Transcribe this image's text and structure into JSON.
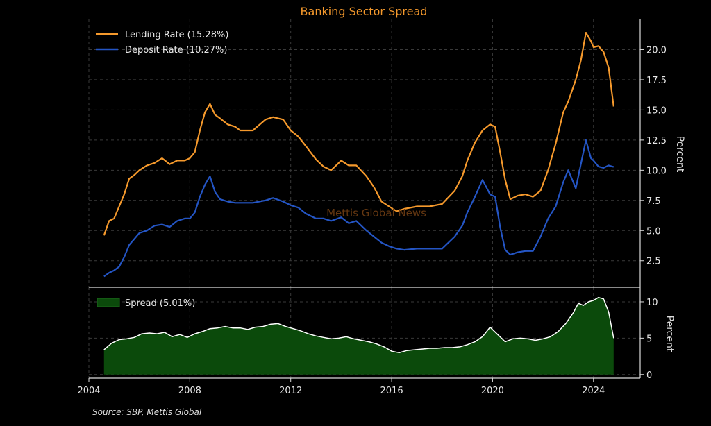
{
  "chart_data": [
    {
      "type": "line",
      "title": "Banking Sector Spread",
      "ylabel": "Percent",
      "xlim": [
        2004.0,
        2025.85
      ],
      "ylim": [
        0.3,
        22.5
      ],
      "yticks": [
        2.5,
        5.0,
        7.5,
        10.0,
        12.5,
        15.0,
        17.5,
        20.0
      ],
      "ytick_labels": [
        "2.5",
        "5.0",
        "7.5",
        "10.0",
        "12.5",
        "15.0",
        "17.5",
        "20.0"
      ],
      "grid": true,
      "legend": "top-left",
      "series": [
        {
          "name": "Lending Rate (15.28%)",
          "color": "#f5992c",
          "x": [
            2004.6,
            2004.8,
            2005.0,
            2005.2,
            2005.4,
            2005.6,
            2005.8,
            2006.0,
            2006.3,
            2006.6,
            2006.9,
            2007.2,
            2007.5,
            2007.8,
            2008.0,
            2008.2,
            2008.4,
            2008.6,
            2008.8,
            2009.0,
            2009.2,
            2009.5,
            2009.8,
            2010.0,
            2010.5,
            2011.0,
            2011.3,
            2011.7,
            2012.0,
            2012.3,
            2012.6,
            2013.0,
            2013.3,
            2013.6,
            2014.0,
            2014.3,
            2014.6,
            2015.0,
            2015.3,
            2015.6,
            2015.9,
            2016.2,
            2016.5,
            2017.0,
            2017.5,
            2018.0,
            2018.5,
            2018.8,
            2019.0,
            2019.3,
            2019.6,
            2019.9,
            2020.1,
            2020.3,
            2020.5,
            2020.7,
            2021.0,
            2021.3,
            2021.6,
            2021.9,
            2022.2,
            2022.5,
            2022.8,
            2023.0,
            2023.3,
            2023.5,
            2023.7,
            2023.9,
            2024.0,
            2024.2,
            2024.4,
            2024.6,
            2024.8
          ],
          "values": [
            4.6,
            5.8,
            6.0,
            7.0,
            8.0,
            9.3,
            9.6,
            10.0,
            10.4,
            10.6,
            11.0,
            10.5,
            10.8,
            10.8,
            11.0,
            11.5,
            13.3,
            14.8,
            15.5,
            14.6,
            14.3,
            13.8,
            13.6,
            13.3,
            13.3,
            14.2,
            14.4,
            14.2,
            13.3,
            12.8,
            12.0,
            10.9,
            10.3,
            10.0,
            10.8,
            10.4,
            10.4,
            9.5,
            8.6,
            7.4,
            7.0,
            6.6,
            6.8,
            7.0,
            7.0,
            7.2,
            8.3,
            9.5,
            10.8,
            12.3,
            13.3,
            13.8,
            13.6,
            11.5,
            9.2,
            7.6,
            7.9,
            8.0,
            7.8,
            8.3,
            10.0,
            12.2,
            14.8,
            15.7,
            17.5,
            19.1,
            21.4,
            20.7,
            20.2,
            20.3,
            19.8,
            18.5,
            15.28
          ]
        },
        {
          "name": "Deposit Rate (10.27%)",
          "color": "#2455c4",
          "x": [
            2004.6,
            2004.8,
            2005.0,
            2005.2,
            2005.4,
            2005.6,
            2005.8,
            2006.0,
            2006.3,
            2006.6,
            2006.9,
            2007.2,
            2007.5,
            2007.8,
            2008.0,
            2008.2,
            2008.4,
            2008.6,
            2008.8,
            2009.0,
            2009.2,
            2009.5,
            2009.8,
            2010.0,
            2010.5,
            2011.0,
            2011.3,
            2011.7,
            2012.0,
            2012.3,
            2012.6,
            2013.0,
            2013.3,
            2013.6,
            2014.0,
            2014.3,
            2014.6,
            2015.0,
            2015.3,
            2015.6,
            2015.9,
            2016.2,
            2016.5,
            2017.0,
            2017.5,
            2018.0,
            2018.5,
            2018.8,
            2019.0,
            2019.3,
            2019.6,
            2019.9,
            2020.1,
            2020.3,
            2020.5,
            2020.7,
            2021.0,
            2021.3,
            2021.6,
            2021.9,
            2022.2,
            2022.5,
            2022.8,
            2023.0,
            2023.3,
            2023.5,
            2023.7,
            2023.9,
            2024.0,
            2024.2,
            2024.4,
            2024.6,
            2024.8
          ],
          "values": [
            1.2,
            1.5,
            1.7,
            2.0,
            2.8,
            3.8,
            4.3,
            4.8,
            5.0,
            5.4,
            5.5,
            5.3,
            5.8,
            6.0,
            6.0,
            6.5,
            7.8,
            8.8,
            9.5,
            8.2,
            7.6,
            7.4,
            7.3,
            7.3,
            7.3,
            7.5,
            7.7,
            7.4,
            7.1,
            6.9,
            6.4,
            6.0,
            6.0,
            5.8,
            6.1,
            5.6,
            5.8,
            5.0,
            4.5,
            4.0,
            3.7,
            3.5,
            3.4,
            3.5,
            3.5,
            3.5,
            4.5,
            5.4,
            6.5,
            7.8,
            9.2,
            8.0,
            7.8,
            5.3,
            3.4,
            3.0,
            3.2,
            3.3,
            3.3,
            4.5,
            6.0,
            7.0,
            9.0,
            10.0,
            8.5,
            10.5,
            12.5,
            11.0,
            10.8,
            10.3,
            10.2,
            10.4,
            10.27
          ]
        }
      ],
      "watermark": "Mettis Global News"
    },
    {
      "type": "area",
      "ylabel": "Percent",
      "xlim": [
        2004.0,
        2025.85
      ],
      "ylim": [
        -0.5,
        12.0
      ],
      "yticks": [
        0,
        5,
        10
      ],
      "ytick_labels": [
        "0",
        "5",
        "10"
      ],
      "xticks": [
        2004,
        2008,
        2012,
        2016,
        2020,
        2024
      ],
      "xtick_labels": [
        "2004",
        "2008",
        "2012",
        "2016",
        "2020",
        "2024"
      ],
      "grid": true,
      "legend": "top-left",
      "series": [
        {
          "name": "Spread (5.01%)",
          "fill_color": "#0b4a0b",
          "line_color": "#ffffff",
          "x": [
            2004.6,
            2004.9,
            2005.2,
            2005.5,
            2005.8,
            2006.1,
            2006.4,
            2006.7,
            2007.0,
            2007.3,
            2007.6,
            2007.9,
            2008.2,
            2008.5,
            2008.8,
            2009.1,
            2009.4,
            2009.7,
            2010.0,
            2010.3,
            2010.6,
            2010.9,
            2011.2,
            2011.5,
            2011.8,
            2012.1,
            2012.4,
            2012.7,
            2013.0,
            2013.3,
            2013.6,
            2013.9,
            2014.2,
            2014.5,
            2014.8,
            2015.1,
            2015.4,
            2015.7,
            2016.0,
            2016.3,
            2016.6,
            2016.9,
            2017.2,
            2017.5,
            2017.8,
            2018.1,
            2018.4,
            2018.7,
            2019.0,
            2019.3,
            2019.6,
            2019.9,
            2020.2,
            2020.5,
            2020.8,
            2021.1,
            2021.4,
            2021.7,
            2022.0,
            2022.3,
            2022.6,
            2022.9,
            2023.2,
            2023.4,
            2023.6,
            2023.8,
            2024.0,
            2024.2,
            2024.4,
            2024.6,
            2024.8
          ],
          "values": [
            3.4,
            4.3,
            4.8,
            4.9,
            5.1,
            5.6,
            5.7,
            5.6,
            5.8,
            5.2,
            5.5,
            5.1,
            5.6,
            5.9,
            6.3,
            6.4,
            6.6,
            6.4,
            6.4,
            6.2,
            6.5,
            6.6,
            6.9,
            7.0,
            6.6,
            6.3,
            6.0,
            5.6,
            5.3,
            5.1,
            4.9,
            5.0,
            5.2,
            4.9,
            4.7,
            4.5,
            4.2,
            3.8,
            3.2,
            3.0,
            3.3,
            3.4,
            3.5,
            3.6,
            3.6,
            3.7,
            3.7,
            3.8,
            4.1,
            4.5,
            5.2,
            6.5,
            5.5,
            4.5,
            4.9,
            5.0,
            4.9,
            4.7,
            4.9,
            5.2,
            5.9,
            7.0,
            8.5,
            9.8,
            9.5,
            10.0,
            10.2,
            10.6,
            10.4,
            8.6,
            5.01
          ]
        }
      ],
      "source": "Source: SBP, Mettis Global"
    }
  ]
}
